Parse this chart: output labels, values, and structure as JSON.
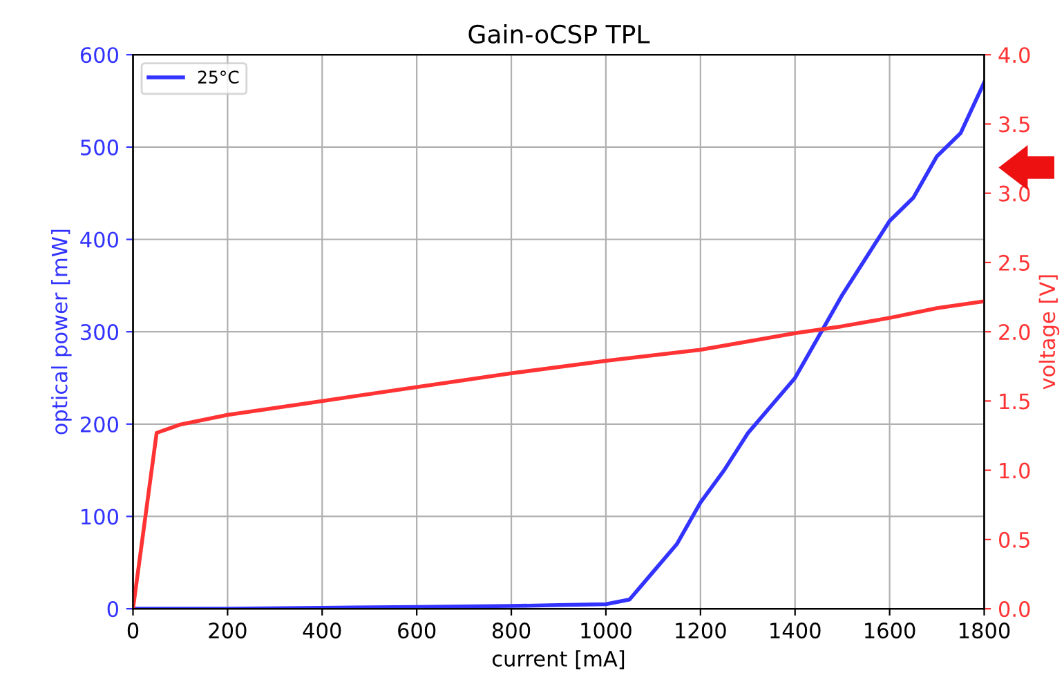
{
  "chart_data": {
    "type": "line",
    "title": "Gain-oCSP TPL",
    "xlabel": "current [mA]",
    "ylabel": "optical power [mW]",
    "y2label": "voltage [V]",
    "xlim": [
      0,
      1800
    ],
    "xticks": [
      0,
      200,
      400,
      600,
      800,
      1000,
      1200,
      1400,
      1600,
      1800
    ],
    "ylim": [
      0,
      600
    ],
    "yticks": [
      0,
      100,
      200,
      300,
      400,
      500,
      600
    ],
    "y2lim": [
      0,
      4.0
    ],
    "y2ticks": [
      {
        "value": 0,
        "label": "0.0"
      },
      {
        "value": 0.5,
        "label": "0.5"
      },
      {
        "value": 1,
        "label": "1.0"
      },
      {
        "value": 1.5,
        "label": "1.5"
      },
      {
        "value": 2,
        "label": "2.0"
      },
      {
        "value": 2.5,
        "label": "2.5"
      },
      {
        "value": 3,
        "label": "3.0"
      },
      {
        "value": 3.5,
        "label": "3.5"
      },
      {
        "value": 4,
        "label": "4.0"
      }
    ],
    "grid": true,
    "legend": "top left",
    "marker": "none",
    "line_style": "solid",
    "series": [
      {
        "name": "25°C",
        "color": "#3333ff",
        "x": [
          0,
          200,
          400,
          600,
          800,
          900,
          1000,
          1050,
          1100,
          1150,
          1200,
          1250,
          1300,
          1350,
          1400,
          1450,
          1500,
          1550,
          1600,
          1650,
          1700,
          1750,
          1800
        ],
        "values": [
          0,
          0,
          1,
          2,
          3,
          4,
          5,
          10,
          40,
          70,
          115,
          150,
          190,
          220,
          250,
          295,
          340,
          380,
          420,
          445,
          490,
          515,
          570
        ]
      },
      {
        "color": "#ff3333",
        "axis": "y2",
        "x": [
          0,
          50,
          100,
          200,
          400,
          600,
          800,
          1000,
          1200,
          1300,
          1400,
          1500,
          1600,
          1700,
          1800
        ],
        "values": [
          0,
          1.27,
          1.33,
          1.4,
          1.5,
          1.6,
          1.7,
          1.79,
          1.87,
          1.93,
          1.99,
          2.04,
          2.1,
          2.17,
          2.22
        ]
      }
    ]
  }
}
